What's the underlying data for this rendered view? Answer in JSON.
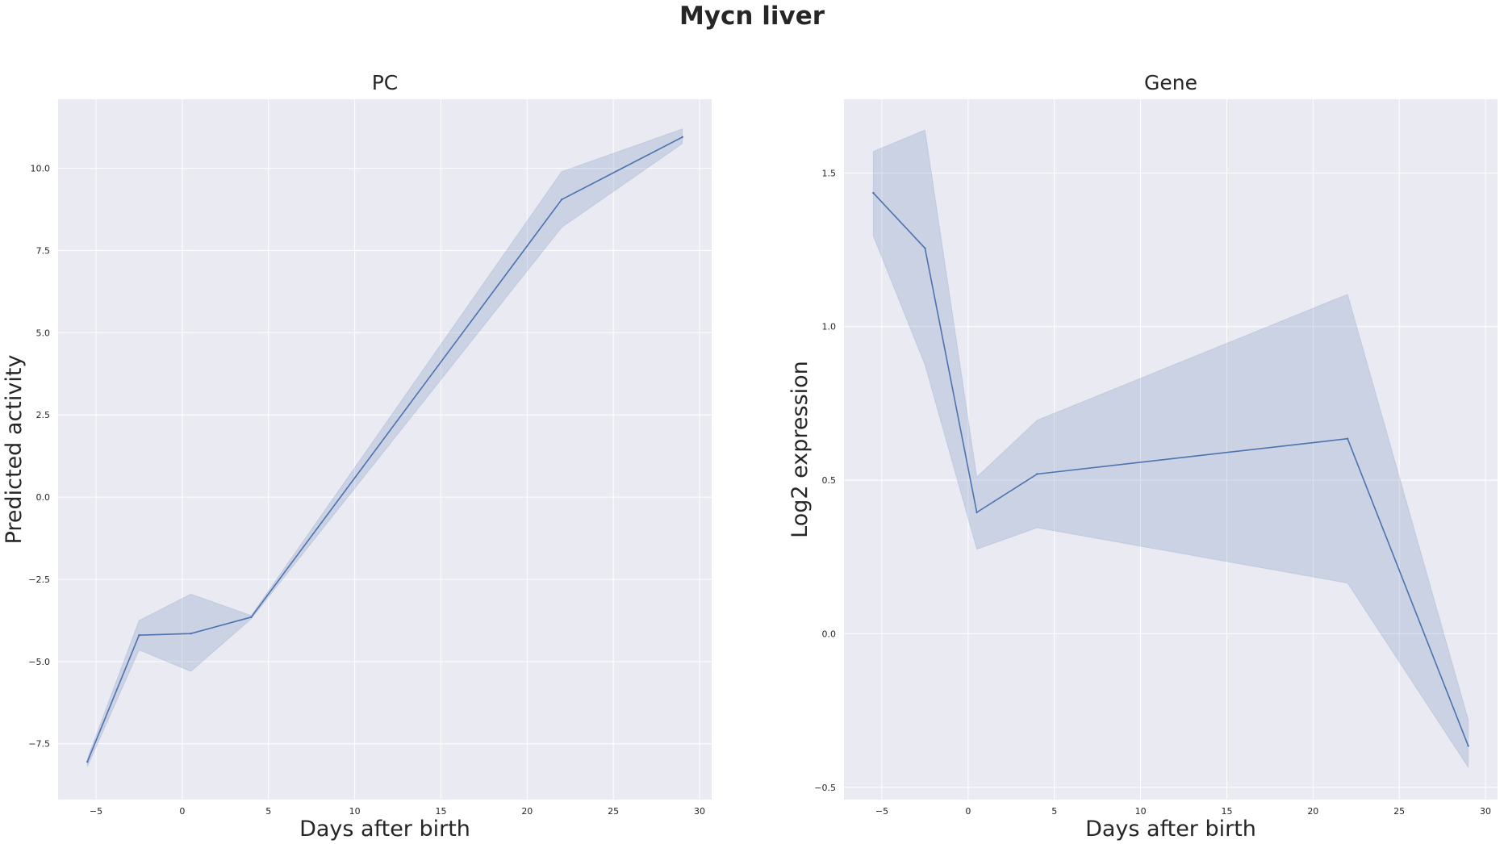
{
  "figure": {
    "title": "Mycn liver"
  },
  "colors": {
    "background": "#eaeaf2",
    "grid": "#ffffff",
    "line": "#4c72b0",
    "band": "#4c72b0"
  },
  "chart_data": [
    {
      "type": "line",
      "title": "PC",
      "xlabel": "Days after birth",
      "ylabel": "Predicted activity",
      "grid": true,
      "xlim": [
        -7.2,
        30.7
      ],
      "ylim": [
        -9.2,
        12.1
      ],
      "xticks": [
        -5,
        0,
        5,
        10,
        15,
        20,
        25,
        30
      ],
      "xtick_labels": [
        "−5",
        "0",
        "5",
        "10",
        "15",
        "20",
        "25",
        "30"
      ],
      "yticks": [
        -7.5,
        -5.0,
        -2.5,
        0.0,
        2.5,
        5.0,
        7.5,
        10.0
      ],
      "ytick_labels": [
        "−7.5",
        "−5.0",
        "−2.5",
        "0.0",
        "2.5",
        "5.0",
        "7.5",
        "10.0"
      ],
      "series": [
        {
          "x": [
            -5.5,
            -2.5,
            0.5,
            4,
            22,
            29
          ],
          "y": [
            -8.05,
            -4.2,
            -4.15,
            -3.65,
            9.05,
            10.95
          ],
          "ci_low": [
            -8.2,
            -4.65,
            -5.3,
            -3.7,
            8.2,
            10.75
          ],
          "ci_high": [
            -7.95,
            -3.75,
            -2.95,
            -3.6,
            9.9,
            11.2
          ]
        }
      ]
    },
    {
      "type": "line",
      "title": "Gene",
      "xlabel": "Days after birth",
      "ylabel": "Log2 expression",
      "grid": true,
      "xlim": [
        -7.2,
        30.7
      ],
      "ylim": [
        -0.54,
        1.74
      ],
      "xticks": [
        -5,
        0,
        5,
        10,
        15,
        20,
        25,
        30
      ],
      "xtick_labels": [
        "−5",
        "0",
        "5",
        "10",
        "15",
        "20",
        "25",
        "30"
      ],
      "yticks": [
        -0.5,
        0.0,
        0.5,
        1.0,
        1.5
      ],
      "ytick_labels": [
        "−0.5",
        "0.0",
        "0.5",
        "1.0",
        "1.5"
      ],
      "series": [
        {
          "x": [
            -5.5,
            -2.5,
            0.5,
            4,
            22,
            29
          ],
          "y": [
            1.435,
            1.255,
            0.395,
            0.52,
            0.635,
            -0.365
          ],
          "ci_low": [
            1.295,
            0.875,
            0.275,
            0.345,
            0.165,
            -0.435
          ],
          "ci_high": [
            1.57,
            1.64,
            0.51,
            0.695,
            1.105,
            -0.28
          ]
        }
      ]
    }
  ]
}
